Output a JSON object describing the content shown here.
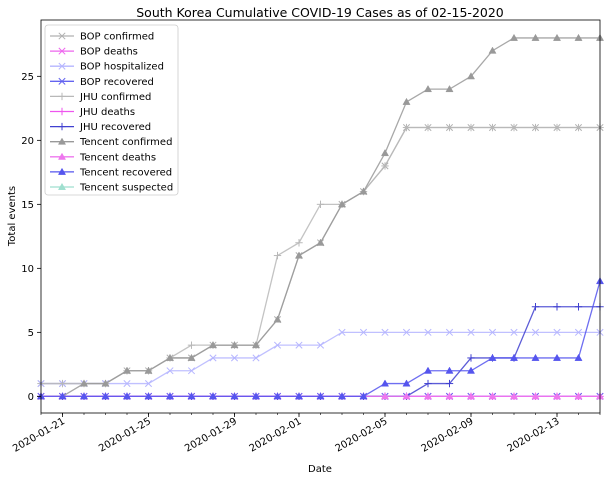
{
  "chart_data": {
    "type": "line",
    "title": "South Korea Cumulative COVID-19 Cases as of 02-15-2020",
    "xlabel": "Date",
    "ylabel": "Total events",
    "x": [
      "2020-01-20",
      "2020-01-21",
      "2020-01-22",
      "2020-01-23",
      "2020-01-24",
      "2020-01-25",
      "2020-01-26",
      "2020-01-27",
      "2020-01-28",
      "2020-01-29",
      "2020-01-30",
      "2020-01-31",
      "2020-02-01",
      "2020-02-02",
      "2020-02-03",
      "2020-02-04",
      "2020-02-05",
      "2020-02-06",
      "2020-02-07",
      "2020-02-08",
      "2020-02-09",
      "2020-02-10",
      "2020-02-11",
      "2020-02-12",
      "2020-02-13",
      "2020-02-14",
      "2020-02-15"
    ],
    "xlim": [
      "2020-01-20",
      "2020-02-15"
    ],
    "ylim": [
      -1.3,
      29.4
    ],
    "x_ticks": [
      "2020-01-21",
      "2020-01-25",
      "2020-01-29",
      "2020-02-01",
      "2020-02-05",
      "2020-02-09",
      "2020-02-13"
    ],
    "y_ticks": [
      0,
      5,
      10,
      15,
      20,
      25
    ],
    "grid": false,
    "legend_position": "top-left",
    "series": [
      {
        "name": "BOP confirmed",
        "color": "#b0b0b0",
        "marker": "x",
        "values": [
          1,
          1,
          1,
          1,
          2,
          2,
          3,
          3,
          4,
          4,
          4,
          6,
          11,
          12,
          15,
          16,
          18,
          21,
          21,
          21,
          21,
          21,
          21,
          21,
          21,
          21,
          21
        ]
      },
      {
        "name": "BOP deaths",
        "color": "#ee66ee",
        "marker": "x",
        "values": [
          0,
          0,
          0,
          0,
          0,
          0,
          0,
          0,
          0,
          0,
          0,
          0,
          0,
          0,
          0,
          0,
          0,
          0,
          0,
          0,
          0,
          0,
          0,
          0,
          0,
          0,
          0
        ]
      },
      {
        "name": "BOP hospitalized",
        "color": "#b5b5ff",
        "marker": "x",
        "values": [
          1,
          1,
          1,
          1,
          1,
          1,
          2,
          2,
          3,
          3,
          3,
          4,
          4,
          4,
          5,
          5,
          5,
          5,
          5,
          5,
          5,
          5,
          5,
          5,
          5,
          5,
          5
        ]
      },
      {
        "name": "BOP recovered",
        "color": "#6464f0",
        "marker": "x",
        "values": [
          0,
          0,
          0,
          0,
          0,
          0,
          0,
          0,
          0,
          0,
          0,
          0,
          0,
          0,
          0,
          0,
          0,
          0,
          0,
          0,
          0,
          0,
          0,
          0,
          0,
          0,
          0
        ]
      },
      {
        "name": "JHU confirmed",
        "color": "#b8b8b8",
        "marker": "+",
        "values": [
          1,
          1,
          1,
          1,
          2,
          2,
          3,
          4,
          4,
          4,
          4,
          11,
          12,
          15,
          15,
          16,
          18,
          21,
          21,
          21,
          21,
          21,
          21,
          21,
          21,
          21,
          21
        ]
      },
      {
        "name": "JHU deaths",
        "color": "#ee55ee",
        "marker": "+",
        "values": [
          0,
          0,
          0,
          0,
          0,
          0,
          0,
          0,
          0,
          0,
          0,
          0,
          0,
          0,
          0,
          0,
          0,
          0,
          0,
          0,
          0,
          0,
          0,
          0,
          0,
          0,
          0
        ]
      },
      {
        "name": "JHU recovered",
        "color": "#4040d0",
        "marker": "+",
        "values": [
          0,
          0,
          0,
          0,
          0,
          0,
          0,
          0,
          0,
          0,
          0,
          0,
          0,
          0,
          0,
          0,
          0,
          0,
          1,
          1,
          3,
          3,
          3,
          7,
          7,
          7,
          7
        ]
      },
      {
        "name": "Tencent confirmed",
        "color": "#999999",
        "marker": "^",
        "values": [
          0,
          0,
          1,
          1,
          2,
          2,
          3,
          3,
          4,
          4,
          4,
          6,
          11,
          12,
          15,
          16,
          19,
          23,
          24,
          24,
          25,
          27,
          28,
          28,
          28,
          28,
          28
        ]
      },
      {
        "name": "Tencent deaths",
        "color": "#ee77ee",
        "marker": "^",
        "values": [
          0,
          0,
          0,
          0,
          0,
          0,
          0,
          0,
          0,
          0,
          0,
          0,
          0,
          0,
          0,
          0,
          0,
          0,
          0,
          0,
          0,
          0,
          0,
          0,
          0,
          0,
          0
        ]
      },
      {
        "name": "Tencent recovered",
        "color": "#5555ee",
        "marker": "^",
        "values": [
          0,
          0,
          0,
          0,
          0,
          0,
          0,
          0,
          0,
          0,
          0,
          0,
          0,
          0,
          0,
          0,
          1,
          1,
          2,
          2,
          2,
          3,
          3,
          3,
          3,
          3,
          9
        ]
      },
      {
        "name": "Tencent suspected",
        "color": "#9fdfcf",
        "marker": "^",
        "values": [
          null,
          null,
          null,
          null,
          null,
          null,
          null,
          null,
          null,
          null,
          null,
          null,
          null,
          null,
          null,
          null,
          null,
          null,
          null,
          null,
          null,
          null,
          null,
          null,
          null,
          null,
          null
        ]
      }
    ]
  }
}
